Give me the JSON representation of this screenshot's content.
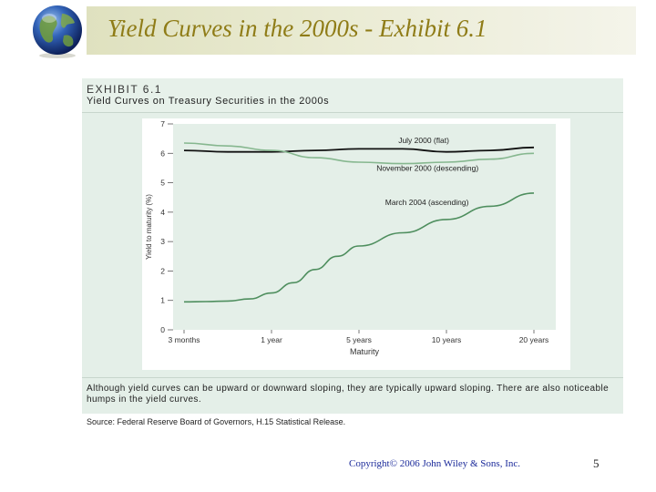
{
  "slide": {
    "title": "Yield Curves in the 2000s - Exhibit 6.1",
    "copyright": "Copyright© 2006 John Wiley & Sons, Inc.",
    "page_number": "5"
  },
  "exhibit": {
    "label": "EXHIBIT 6.1",
    "title": "Yield Curves on Treasury Securities in the 2000s",
    "caption": "Although yield curves can be upward or downward sloping, they are typically upward sloping. There are also noticeable humps in the yield curves.",
    "source": "Source: Federal Reserve Board of Governors, H.15 Statistical Release."
  },
  "colors": {
    "title_text": "#8f7c17",
    "plot_bg": "#e4efe8",
    "july_2000": "#111111",
    "november_2000": "#86b78f",
    "march_2004": "#4e8e5e"
  },
  "chart_data": {
    "type": "line",
    "xlabel": "Maturity",
    "ylabel": "Yield to maturity (%)",
    "categories": [
      "3 months",
      "1 year",
      "5 years",
      "10 years",
      "20 years"
    ],
    "ylim": [
      0,
      7
    ],
    "yticks": [
      0,
      1,
      2,
      3,
      4,
      5,
      6,
      7
    ],
    "grid": false,
    "series": [
      {
        "name": "July 2000 (flat)",
        "x": [
          0,
          0.5,
          1,
          1.5,
          2,
          2.5,
          3,
          3.5,
          4
        ],
        "values": [
          6.1,
          6.05,
          6.05,
          6.1,
          6.15,
          6.15,
          6.05,
          6.1,
          6.2
        ]
      },
      {
        "name": "November 2000 (descending)",
        "x": [
          0,
          0.5,
          1,
          1.5,
          2,
          2.5,
          3,
          3.5,
          4
        ],
        "values": [
          6.35,
          6.25,
          6.1,
          5.85,
          5.7,
          5.65,
          5.7,
          5.8,
          6.0
        ]
      },
      {
        "name": "March 2004 (ascending)",
        "x": [
          0,
          0.25,
          0.5,
          0.75,
          1,
          1.25,
          1.5,
          1.75,
          2,
          2.5,
          3,
          3.5,
          4
        ],
        "values": [
          0.95,
          0.96,
          0.98,
          1.05,
          1.25,
          1.6,
          2.05,
          2.5,
          2.85,
          3.3,
          3.75,
          4.2,
          4.65
        ]
      }
    ]
  }
}
